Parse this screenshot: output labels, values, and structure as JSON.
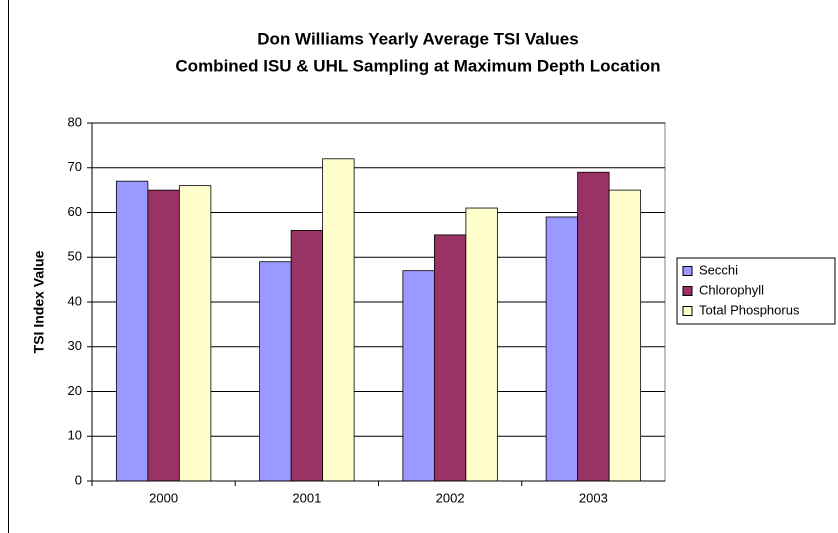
{
  "chart_data": {
    "type": "bar",
    "title": "Don Williams Yearly Average TSI Values",
    "subtitle": "Combined ISU & UHL Sampling at Maximum Depth Location",
    "y_label": "TSI Index Value",
    "categories": [
      "2000",
      "2001",
      "2002",
      "2003"
    ],
    "series": [
      {
        "name": "Secchi",
        "color": "#9999ff",
        "values": [
          67,
          49,
          47,
          59
        ]
      },
      {
        "name": "Chlorophyll",
        "color": "#993366",
        "values": [
          65,
          56,
          55,
          69
        ]
      },
      {
        "name": "Total Phosphorus",
        "color": "#ffffcc",
        "values": [
          66,
          72,
          61,
          65
        ]
      }
    ],
    "ylim": [
      0,
      80
    ],
    "yticks": [
      0,
      10,
      20,
      30,
      40,
      50,
      60,
      70,
      80
    ],
    "grid": true,
    "legend": "right"
  }
}
